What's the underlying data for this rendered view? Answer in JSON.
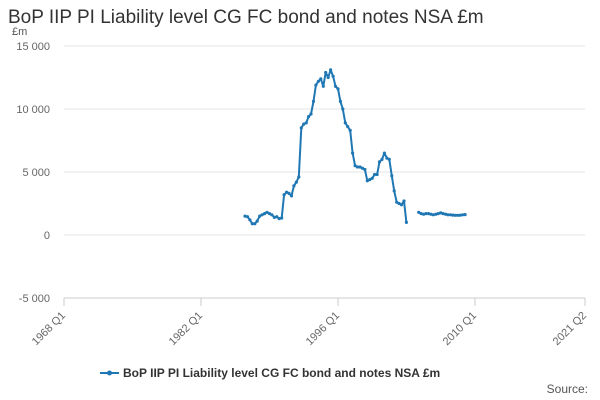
{
  "title": "BoP IIP PI Liability level CG FC bond and notes NSA £m",
  "unit_label": "£m",
  "source_label": "Source:",
  "colors": {
    "series": "#1f77b4",
    "grid": "#e6e6e6",
    "axis": "#cccccc"
  },
  "chart_data": {
    "type": "line",
    "title": "BoP IIP PI Liability level CG FC bond and notes NSA £m",
    "ylabel": "£m",
    "xlabel": "",
    "ylim": [
      -5000,
      15000
    ],
    "y_ticks": [
      -5000,
      0,
      5000,
      10000,
      15000
    ],
    "y_tick_labels": [
      "-5 000",
      "0",
      "5 000",
      "10 000",
      "15 000"
    ],
    "xlim": [
      1968.0,
      2021.25
    ],
    "x_ticks": [
      1968.0,
      1982.0,
      1996.0,
      2010.0,
      2021.25
    ],
    "x_tick_labels": [
      "1968 Q1",
      "1982 Q1",
      "1996 Q1",
      "2010 Q1",
      "2021 Q2"
    ],
    "grid": "horizontal",
    "legend": "bottom",
    "series": [
      {
        "name": "BoP IIP PI Liability level CG FC bond and notes NSA £m",
        "segments": [
          {
            "x": [
              1986.5,
              1986.75,
              1987.0,
              1987.25,
              1987.5,
              1987.75,
              1988.0,
              1988.25,
              1988.5,
              1988.75,
              1989.0,
              1989.25,
              1989.5,
              1989.75,
              1990.0,
              1990.25,
              1990.5,
              1990.75,
              1991.0,
              1991.25,
              1991.5,
              1991.75,
              1992.0,
              1992.25,
              1992.5,
              1992.75,
              1993.0,
              1993.25,
              1993.5,
              1993.75,
              1994.0,
              1994.25,
              1994.5,
              1994.75,
              1995.0,
              1995.25,
              1995.5,
              1995.75,
              1996.0,
              1996.25,
              1996.5,
              1996.75,
              1997.0,
              1997.25,
              1997.5,
              1997.75,
              1998.0,
              1998.25,
              1998.5,
              1998.75,
              1999.0,
              1999.25,
              1999.5,
              1999.75,
              2000.0,
              2000.25,
              2000.5,
              2000.75,
              2001.0,
              2001.25,
              2001.5,
              2001.75,
              2002.0,
              2002.25,
              2002.5,
              2002.75,
              2003.0,
              2003.25,
              2003.5,
              2003.75
            ],
            "y": [
              1500,
              1450,
              1200,
              900,
              900,
              1100,
              1500,
              1600,
              1700,
              1800,
              1700,
              1600,
              1400,
              1450,
              1300,
              1350,
              3200,
              3400,
              3300,
              3100,
              3900,
              4200,
              4600,
              8500,
              8800,
              8900,
              9400,
              9600,
              10600,
              11900,
              12200,
              12400,
              11800,
              12900,
              12500,
              13100,
              12600,
              11800,
              11600,
              10600,
              10000,
              8900,
              8600,
              8300,
              6500,
              5500,
              5400,
              5400,
              5300,
              5200,
              4300,
              4400,
              4500,
              4800,
              4800,
              5800,
              6000,
              6500,
              6100,
              6000,
              4700,
              3500,
              2600,
              2500,
              2400,
              2700,
              1000,
              null,
              null,
              null
            ]
          },
          {
            "x": [
              2004.25,
              2004.5,
              2004.75,
              2005.0,
              2005.25,
              2005.5,
              2005.75,
              2006.0,
              2006.25,
              2006.5,
              2006.75,
              2007.0,
              2007.25,
              2007.5,
              2007.75,
              2008.0,
              2008.25,
              2008.5,
              2008.75,
              2009.0
            ],
            "y": [
              1800,
              1700,
              1650,
              1700,
              1700,
              1650,
              1600,
              1650,
              1700,
              1750,
              1700,
              1650,
              1600,
              1600,
              1580,
              1560,
              1560,
              1570,
              1600,
              1620
            ]
          }
        ]
      }
    ]
  }
}
